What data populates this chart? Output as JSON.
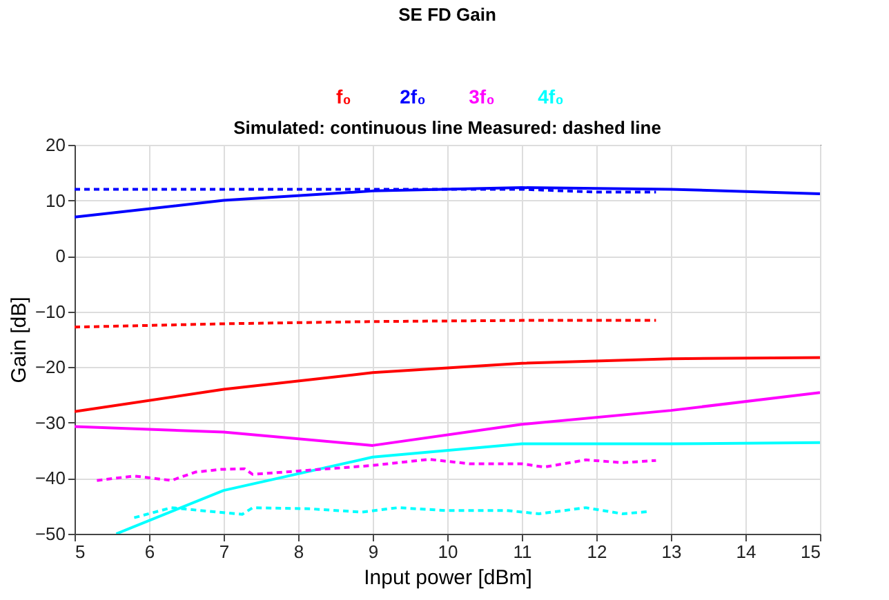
{
  "chart_data": {
    "type": "line",
    "title": "SE FD Gain",
    "subtitle": "Simulated: continuous line   Measured: dashed line",
    "xlabel": "Input power [dBm]",
    "ylabel": "Gain [dB]",
    "xlim": [
      5,
      15
    ],
    "xticks": [
      5,
      6,
      7,
      8,
      9,
      10,
      11,
      12,
      13,
      14,
      15
    ],
    "ylim": [
      -50,
      20
    ],
    "yticks": [
      -50,
      -40,
      -30,
      -20,
      -10,
      0,
      10,
      20
    ],
    "grid": true,
    "legend": "top",
    "series": [
      {
        "name": "f₀",
        "color": "#ff0000",
        "line_style": "solid",
        "x": [
          5,
          7,
          9,
          11,
          13,
          15
        ],
        "values": [
          -28,
          -24,
          -21,
          -19.3,
          -18.5,
          -18.3
        ]
      },
      {
        "name": "2f₀",
        "color": "#0000ff",
        "line_style": "solid",
        "x": [
          5,
          7,
          9,
          11,
          13,
          15
        ],
        "values": [
          7,
          10,
          11.7,
          12.3,
          12,
          11.2
        ]
      },
      {
        "name": "3f₀",
        "color": "#ff00ff",
        "line_style": "solid",
        "x": [
          5,
          7,
          9,
          11,
          13,
          15
        ],
        "values": [
          -30.7,
          -31.7,
          -34.1,
          -30.3,
          -27.8,
          -24.6
        ]
      },
      {
        "name": "4f₀",
        "color": "#00ffff",
        "line_style": "solid",
        "x": [
          5.56,
          7,
          9,
          11,
          13,
          15
        ],
        "values": [
          -50,
          -42.2,
          -36.2,
          -33.8,
          -33.8,
          -33.6
        ]
      },
      {
        "color": "#ff0000",
        "line_style": "dashed",
        "x": [
          5,
          7,
          9,
          11,
          12.8
        ],
        "values": [
          -12.8,
          -12.2,
          -11.8,
          -11.6,
          -11.6
        ]
      },
      {
        "color": "#0000ff",
        "line_style": "dashed",
        "x": [
          5,
          7,
          9,
          10,
          11,
          12,
          12.8
        ],
        "values": [
          12,
          12,
          12,
          12,
          12,
          11.5,
          11.5
        ]
      },
      {
        "color": "#ff00ff",
        "line_style": "dashed",
        "x": [
          5.3,
          5.8,
          6.3,
          6.62,
          6.97,
          7.28,
          7.39,
          8.0,
          9,
          9.76,
          10.3,
          11,
          11.3,
          11.86,
          12.35,
          12.8
        ],
        "values": [
          -40.4,
          -39.6,
          -40.4,
          -38.9,
          -38.4,
          -38.3,
          -39.3,
          -38.7,
          -37.7,
          -36.6,
          -37.4,
          -37.4,
          -38,
          -36.7,
          -37.2,
          -36.8
        ]
      },
      {
        "color": "#00ffff",
        "line_style": "dashed",
        "x": [
          5.8,
          6.3,
          6.76,
          7.25,
          7.39,
          8.16,
          8.85,
          9.34,
          9.97,
          10.8,
          11.23,
          11.86,
          12.35,
          12.7
        ],
        "values": [
          -47.1,
          -45.3,
          -45.9,
          -46.5,
          -45.3,
          -45.5,
          -46.1,
          -45.3,
          -45.8,
          -45.8,
          -46.4,
          -45.3,
          -46.4,
          -46.0
        ]
      }
    ]
  }
}
